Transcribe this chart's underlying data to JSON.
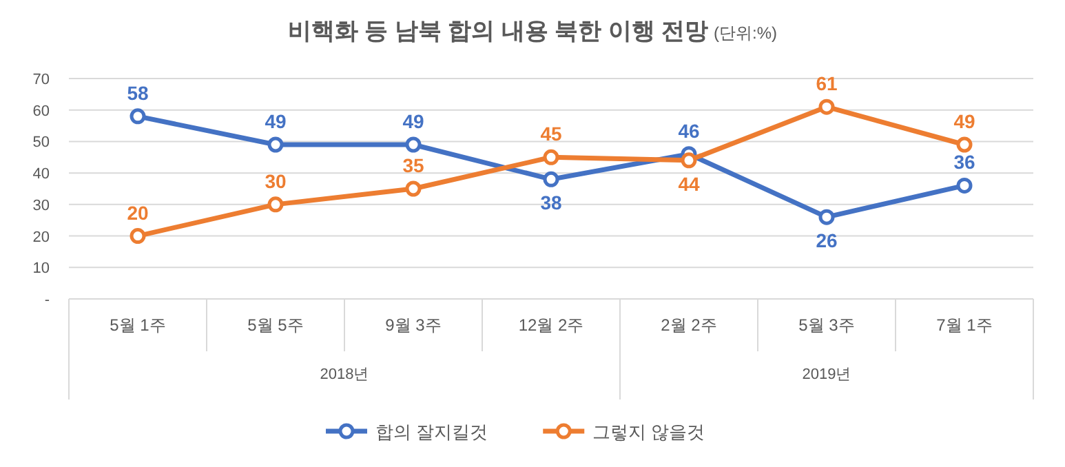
{
  "chart_data": {
    "type": "line",
    "title": "비핵화 등 남북 합의 내용 북한 이행 전망",
    "subtitle": "(단위:%)",
    "categories": [
      "5월 1주",
      "5월 5주",
      "9월 3주",
      "12월 2주",
      "2월 2주",
      "5월 3주",
      "7월 1주"
    ],
    "annotations": [
      "2018년",
      "2019년"
    ],
    "series": [
      {
        "name": "합의 잘지킬것",
        "color": "#4472c4",
        "values": [
          58,
          49,
          49,
          38,
          46,
          26,
          36
        ]
      },
      {
        "name": "그렇지 않을것",
        "color": "#ed7d31",
        "values": [
          20,
          30,
          35,
          45,
          44,
          61,
          49
        ]
      }
    ],
    "ylim": [
      0,
      70
    ],
    "yticks": [
      {
        "value": 0,
        "label": "-"
      },
      10,
      20,
      30,
      40,
      50,
      60,
      70
    ],
    "grid": "y",
    "legend": "bottom",
    "marker": "circle",
    "line_style": "solid",
    "data_labels": true
  }
}
